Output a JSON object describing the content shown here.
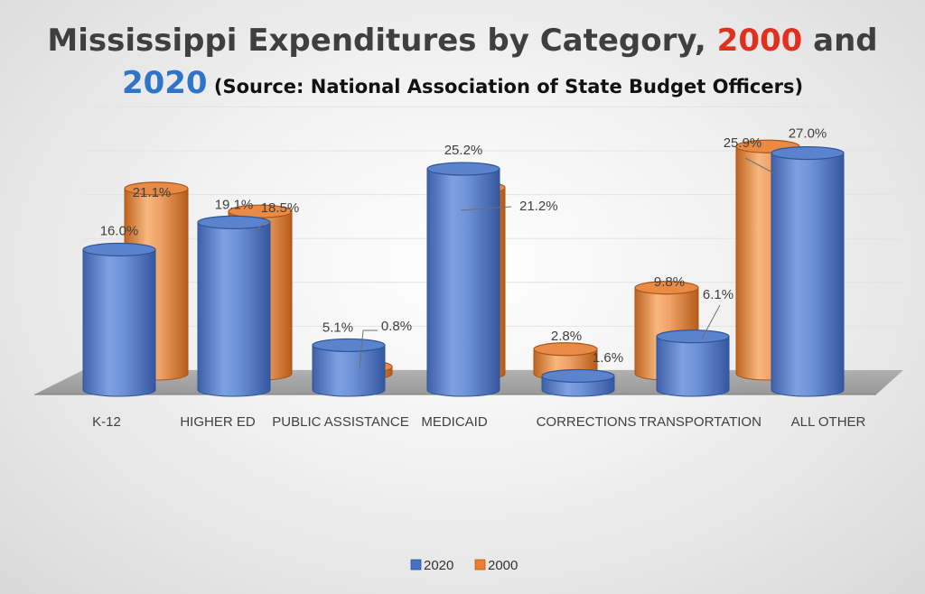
{
  "chart_data": {
    "type": "bar",
    "title": {
      "line1_part1": "Mississippi Expenditures by Category, ",
      "line1_part2": "2000",
      "line1_part3": " and",
      "line2_part1": "2020",
      "line2_part2": " (Source: National Association of State Budget Officers)"
    },
    "categories": [
      "K-12",
      "HIGHER ED",
      "PUBLIC ASSISTANCE",
      "MEDICAID",
      "CORRECTIONS",
      "TRANSPORTATION",
      "ALL OTHER"
    ],
    "series": [
      {
        "name": "2020",
        "values": [
          16.0,
          19.1,
          5.1,
          25.2,
          1.6,
          6.1,
          27.0
        ],
        "labels": [
          "16.0%",
          "19.1%",
          "5.1%",
          "25.2%",
          "1.6%",
          "6.1%",
          "27.0%"
        ]
      },
      {
        "name": "2000",
        "values": [
          21.1,
          18.5,
          0.8,
          21.2,
          2.8,
          9.8,
          25.9
        ],
        "labels": [
          "21.1%",
          "18.5%",
          "0.8%",
          "21.2%",
          "2.8%",
          "9.8%",
          "25.9%"
        ]
      }
    ],
    "ylim": [
      0,
      30
    ],
    "grid": true,
    "legend_position": "bottom",
    "colors": {
      "2020": "#4472C4",
      "2000": "#ED7D31",
      "title_dark": "#3F3F3F",
      "title_red": "#E0301E",
      "title_blue": "#2E75C9"
    }
  }
}
